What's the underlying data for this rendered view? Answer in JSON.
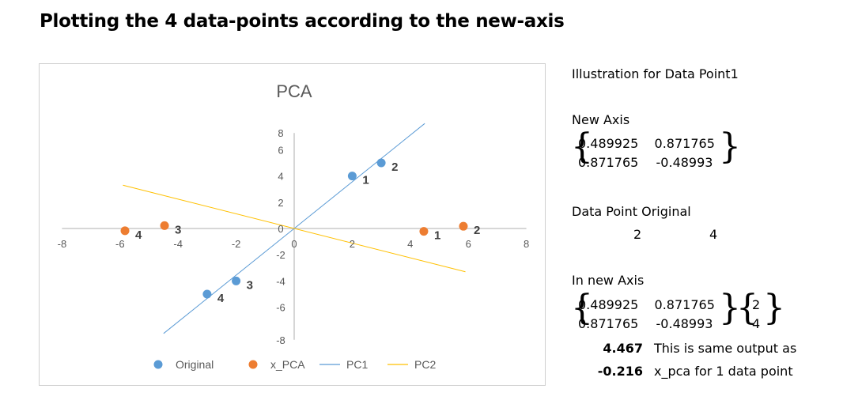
{
  "heading": "Plotting the 4 data-points according to the new-axis",
  "chart_data": {
    "type": "scatter",
    "title": "PCA",
    "xlim": [
      -8,
      8
    ],
    "ylim": [
      -8,
      8
    ],
    "xticks": [
      -8,
      -6,
      -4,
      -2,
      0,
      2,
      4,
      6,
      8
    ],
    "yticks": [
      -8,
      -6,
      -4,
      -2,
      0,
      2,
      4,
      6,
      8
    ],
    "grid": false,
    "legend_position": "bottom",
    "series": [
      {
        "name": "Original",
        "kind": "scatter",
        "color": "#5b9bd5",
        "points": [
          {
            "x": 2,
            "y": 4,
            "label": "1"
          },
          {
            "x": 3,
            "y": 5,
            "label": "2"
          },
          {
            "x": -2,
            "y": -4,
            "label": "3"
          },
          {
            "x": -3,
            "y": -5,
            "label": "4"
          }
        ]
      },
      {
        "name": "x_PCA",
        "kind": "scatter",
        "color": "#ed7d31",
        "points": [
          {
            "x": 4.467,
            "y": -0.216,
            "label": "1"
          },
          {
            "x": 5.83,
            "y": 0.17,
            "label": "2"
          },
          {
            "x": -4.467,
            "y": 0.216,
            "label": "3"
          },
          {
            "x": -5.83,
            "y": -0.17,
            "label": "4"
          }
        ]
      },
      {
        "name": "PC1",
        "kind": "line",
        "color": "#5b9bd5",
        "points": [
          {
            "x": -4.5,
            "y": -8
          },
          {
            "x": 4.5,
            "y": 8
          }
        ]
      },
      {
        "name": "PC2",
        "kind": "line",
        "color": "#ffc000",
        "points": [
          {
            "x": -5.9,
            "y": 3.3
          },
          {
            "x": 5.9,
            "y": -3.3
          }
        ]
      }
    ]
  },
  "side": {
    "illustration_title": "Illustration for Data Point1",
    "new_axis_label": "New Axis",
    "matrix": [
      [
        "0.489925",
        "0.871765"
      ],
      [
        "0.871765",
        "-0.48993"
      ]
    ],
    "data_point_label": "Data Point Original",
    "data_point": [
      "2",
      "4"
    ],
    "in_new_axis_label": "In new Axis",
    "results": [
      "4.467",
      "-0.216"
    ],
    "note_line1": "This is same output as",
    "note_line2": "x_pca for 1 data point"
  }
}
